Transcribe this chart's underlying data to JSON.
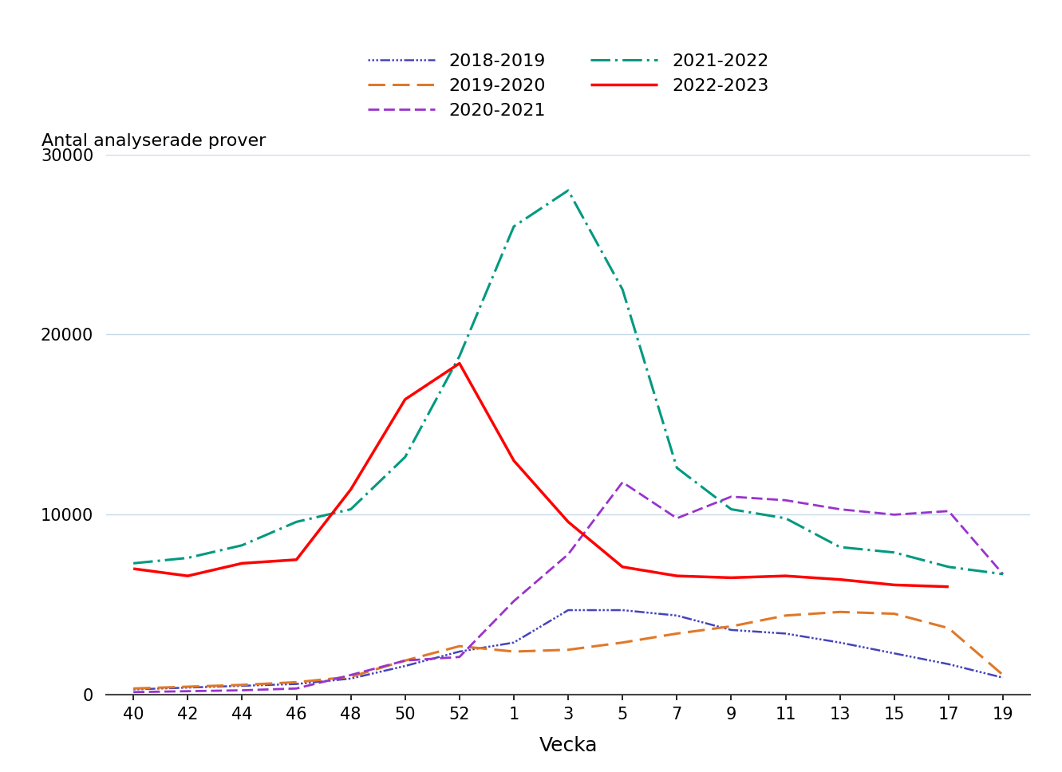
{
  "x_labels": [
    40,
    42,
    44,
    46,
    48,
    50,
    52,
    1,
    3,
    5,
    7,
    9,
    11,
    13,
    15,
    17,
    19
  ],
  "x_positions": [
    0,
    1,
    2,
    3,
    4,
    5,
    6,
    7,
    8,
    9,
    10,
    11,
    12,
    13,
    14,
    15,
    16
  ],
  "series": {
    "2018-2019": {
      "color": "#4444bb",
      "linewidth": 1.8,
      "values": [
        300,
        400,
        500,
        600,
        900,
        1600,
        2400,
        2900,
        4700,
        4700,
        4400,
        3600,
        3400,
        2900,
        2300,
        1700,
        950
      ]
    },
    "2019-2020": {
      "color": "#e07828",
      "linewidth": 2.2,
      "values": [
        350,
        450,
        550,
        700,
        1000,
        1900,
        2700,
        2400,
        2500,
        2900,
        3400,
        3800,
        4400,
        4600,
        4500,
        3700,
        1100
      ]
    },
    "2020-2021": {
      "color": "#9933cc",
      "linewidth": 2.0,
      "values": [
        150,
        200,
        250,
        350,
        1100,
        1900,
        2100,
        5200,
        7800,
        11800,
        9800,
        11000,
        10800,
        10300,
        10000,
        10200,
        6700
      ]
    },
    "2021-2022": {
      "color": "#009980",
      "linewidth": 2.2,
      "values": [
        7300,
        7600,
        8300,
        9600,
        10300,
        13200,
        18800,
        26000,
        28000,
        22500,
        12600,
        10300,
        9800,
        8200,
        7900,
        7100,
        6700
      ]
    },
    "2022-2023": {
      "color": "#ff0000",
      "linewidth": 2.5,
      "values": [
        7000,
        6600,
        7300,
        7500,
        11400,
        16400,
        18400,
        13000,
        9600,
        7100,
        6600,
        6500,
        6600,
        6400,
        6100,
        6000,
        null
      ]
    }
  },
  "ylabel": "Antal analyserade prover",
  "xlabel": "Vecka",
  "ylim": [
    0,
    30000
  ],
  "yticks": [
    0,
    10000,
    20000,
    30000
  ],
  "ytick_labels": [
    "0",
    "10000",
    "20000",
    "30000"
  ],
  "background_color": "#ffffff",
  "grid_color": "#c8d8e8",
  "legend_fontsize": 16,
  "axis_label_fontsize": 16,
  "tick_fontsize": 15
}
